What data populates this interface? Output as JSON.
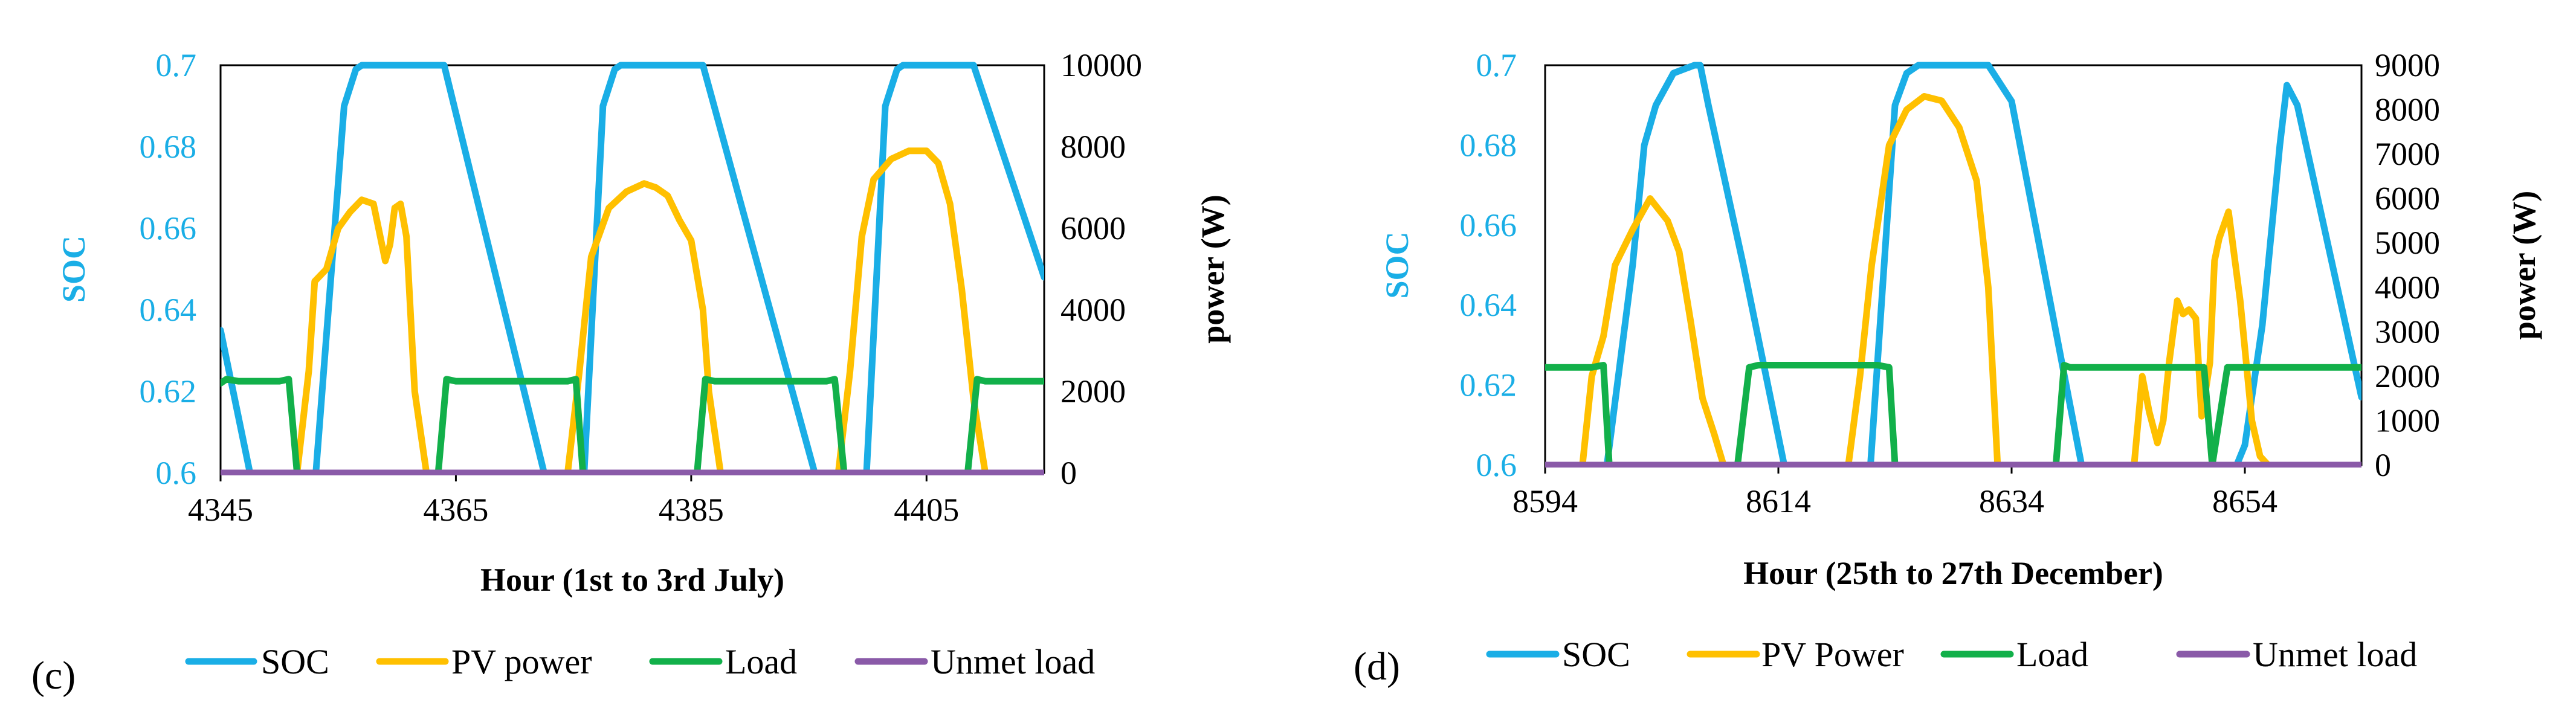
{
  "colors": {
    "soc": "#1aaee6",
    "pv": "#ffc000",
    "load": "#12b04a",
    "unmet": "#8a5aa8",
    "axis_left": "#1aaee6",
    "axis_right": "#000000",
    "frame": "#000000",
    "tick_text": "#000000"
  },
  "chart_data": [
    {
      "id": "c",
      "panel_label": "(c)",
      "type": "line",
      "xlabel": "Hour (1st to 3rd July)",
      "ylabel_left": "SOC",
      "ylabel_right": "power (W)",
      "xlim": [
        4345,
        4415
      ],
      "ylim_left": [
        0.6,
        0.7
      ],
      "ylim_right": [
        0,
        10000
      ],
      "x_ticks": [
        4345,
        4365,
        4385,
        4405
      ],
      "y_left_ticks": [
        "0.6",
        "0.62",
        "0.64",
        "0.66",
        "0.68",
        "0.7"
      ],
      "y_left_tick_values": [
        0.6,
        0.62,
        0.64,
        0.66,
        0.68,
        0.7
      ],
      "y_right_ticks": [
        "0",
        "2000",
        "4000",
        "6000",
        "8000",
        "10000"
      ],
      "y_right_tick_values": [
        0,
        2000,
        4000,
        6000,
        8000,
        10000
      ],
      "legend": [
        "SOC",
        "PV power",
        "Load",
        "Unmet load"
      ],
      "series": [
        {
          "name": "SOC",
          "axis": "left",
          "color": "#1aaee6",
          "x": [
            4345,
            4347.5,
            4347.6,
            4353.0,
            4353.1,
            4355.5,
            4356.5,
            4357,
            4363.5,
            4364,
            4372.5,
            4372.6,
            4375.8,
            4375.9,
            4377.5,
            4378.5,
            4379,
            4385.5,
            4386,
            4395.5,
            4395.6,
            4399.8,
            4399.9,
            4401.5,
            4402.5,
            4403,
            4408.5,
            4409,
            4415
          ],
          "y": [
            0.635,
            0.6,
            null,
            null,
            0.6,
            0.69,
            0.699,
            0.7,
            0.7,
            0.7,
            0.6,
            null,
            null,
            0.6,
            0.69,
            0.699,
            0.7,
            0.7,
            0.7,
            0.6,
            null,
            null,
            0.6,
            0.69,
            0.699,
            0.7,
            0.7,
            0.7,
            0.648
          ]
        },
        {
          "name": "PV power",
          "axis": "right",
          "color": "#ffc000",
          "x": [
            4351.5,
            4352.5,
            4353,
            4354,
            4355,
            4356,
            4357,
            4358,
            4359,
            4359.4,
            4359.8,
            4360.3,
            4360.8,
            4361.5,
            4362.5,
            4363.5,
            4374.5,
            4375.5,
            4376.5,
            4378,
            4379.5,
            4381,
            4382,
            4383,
            4384,
            4385,
            4386,
            4386.5,
            4387.5,
            4397.5,
            4398.5,
            4399.5,
            4400.5,
            4402,
            4403.5,
            4405,
            4406,
            4407,
            4408,
            4409,
            4410
          ],
          "y": [
            0,
            2500,
            4700,
            5000,
            6000,
            6400,
            6700,
            6600,
            5200,
            5600,
            6500,
            6600,
            5800,
            2000,
            0,
            0,
            0,
            2500,
            5300,
            6500,
            6900,
            7100,
            7000,
            6800,
            6200,
            5700,
            4000,
            2000,
            0,
            0,
            2500,
            5800,
            7200,
            7700,
            7900,
            7900,
            7600,
            6600,
            4500,
            1800,
            0
          ]
        },
        {
          "name": "Load",
          "axis": "right",
          "color": "#12b04a",
          "x": [
            4345,
            4345.5,
            4346.5,
            4350,
            4350.8,
            4351.5,
            4363.5,
            4364.2,
            4365,
            4374.5,
            4375.2,
            4375.8,
            4385.5,
            4386.2,
            4387,
            4396.5,
            4397.2,
            4398,
            4408.5,
            4409.3,
            4410,
            4415
          ],
          "y": [
            2200,
            2300,
            2250,
            2250,
            2300,
            0,
            0,
            2300,
            2250,
            2250,
            2300,
            0,
            0,
            2300,
            2250,
            2250,
            2300,
            0,
            0,
            2300,
            2250,
            2250
          ]
        },
        {
          "name": "Unmet load",
          "axis": "right",
          "color": "#8a5aa8",
          "x": [
            4345,
            4415
          ],
          "y": [
            0,
            0
          ]
        }
      ]
    },
    {
      "id": "d",
      "panel_label": "(d)",
      "type": "line",
      "xlabel": "Hour (25th to 27th December)",
      "ylabel_left": "SOC",
      "ylabel_right": "power (W)",
      "xlim": [
        8594,
        8664
      ],
      "ylim_left": [
        0.6,
        0.7
      ],
      "ylim_right": [
        0,
        9000
      ],
      "x_ticks": [
        8594,
        8614,
        8634,
        8654
      ],
      "y_left_ticks": [
        "0.6",
        "0.62",
        "0.64",
        "0.66",
        "0.68",
        "0.7"
      ],
      "y_left_tick_values": [
        0.6,
        0.62,
        0.64,
        0.66,
        0.68,
        0.7
      ],
      "y_right_ticks": [
        "0",
        "1000",
        "2000",
        "3000",
        "4000",
        "5000",
        "6000",
        "7000",
        "8000",
        "9000"
      ],
      "y_right_tick_values": [
        0,
        1000,
        2000,
        3000,
        4000,
        5000,
        6000,
        7000,
        8000,
        9000
      ],
      "legend": [
        "SOC",
        "PV Power",
        "Load",
        "Unmet load"
      ],
      "series": [
        {
          "name": "SOC",
          "axis": "left",
          "color": "#1aaee6",
          "x": [
            8599.3,
            8601.5,
            8602.5,
            8603.5,
            8605,
            8606.8,
            8607.3,
            8608,
            8611,
            8614.5,
            8614.6,
            8621.8,
            8621.9,
            8624,
            8625,
            8626,
            8629,
            8631,
            8632,
            8634,
            8640,
            8640.1,
            8653.2,
            8653.3,
            8654,
            8655.5,
            8657,
            8657.6,
            8658.5,
            8664
          ],
          "y": [
            0.6,
            0.65,
            0.68,
            0.69,
            0.698,
            0.7,
            0.7,
            0.69,
            0.65,
            0.6,
            null,
            null,
            0.6,
            0.69,
            0.698,
            0.7,
            0.7,
            0.7,
            0.7,
            0.691,
            0.6,
            null,
            null,
            0.6,
            0.605,
            0.635,
            0.68,
            0.695,
            0.69,
            0.617
          ]
        },
        {
          "name": "PV power",
          "axis": "right",
          "color": "#ffc000",
          "x": [
            8597.2,
            8598,
            8599,
            8600,
            8601.5,
            8603,
            8604.5,
            8605.5,
            8606.5,
            8607.5,
            8608.5,
            8609.3,
            8620,
            8621,
            8622,
            8623.5,
            8625,
            8626.5,
            8628,
            8629.5,
            8631,
            8632,
            8632.8,
            8644.5,
            8645.2,
            8645.8,
            8646.5,
            8647,
            8647.5,
            8648.2,
            8648.7,
            8649.2,
            8649.8,
            8650.3,
            8651,
            8651.4,
            8651.8,
            8652.6,
            8653.6,
            8654.6,
            8655.3,
            8656
          ],
          "y": [
            0,
            2000,
            2900,
            4500,
            5300,
            6000,
            5500,
            4800,
            3200,
            1500,
            700,
            0,
            0,
            2000,
            4500,
            7200,
            8000,
            8300,
            8200,
            7600,
            6400,
            4000,
            0,
            0,
            2000,
            1200,
            500,
            1000,
            2300,
            3700,
            3400,
            3500,
            3300,
            1100,
            2300,
            4600,
            5100,
            5700,
            3700,
            1000,
            200,
            0
          ]
        },
        {
          "name": "Load",
          "axis": "right",
          "color": "#12b04a",
          "x": [
            8594,
            8598,
            8599,
            8599.5,
            8610.5,
            8611.5,
            8612.3,
            8622.5,
            8623.5,
            8624,
            8637.8,
            8638.5,
            8639,
            8650.5,
            8651.2,
            8652.5,
            8664
          ],
          "y": [
            2200,
            2200,
            2250,
            0,
            0,
            2200,
            2250,
            2250,
            2200,
            0,
            0,
            2250,
            2200,
            2200,
            0,
            2200,
            2200
          ]
        },
        {
          "name": "Unmet load",
          "axis": "right",
          "color": "#8a5aa8",
          "x": [
            8594,
            8664
          ],
          "y": [
            0,
            0
          ]
        }
      ]
    }
  ]
}
